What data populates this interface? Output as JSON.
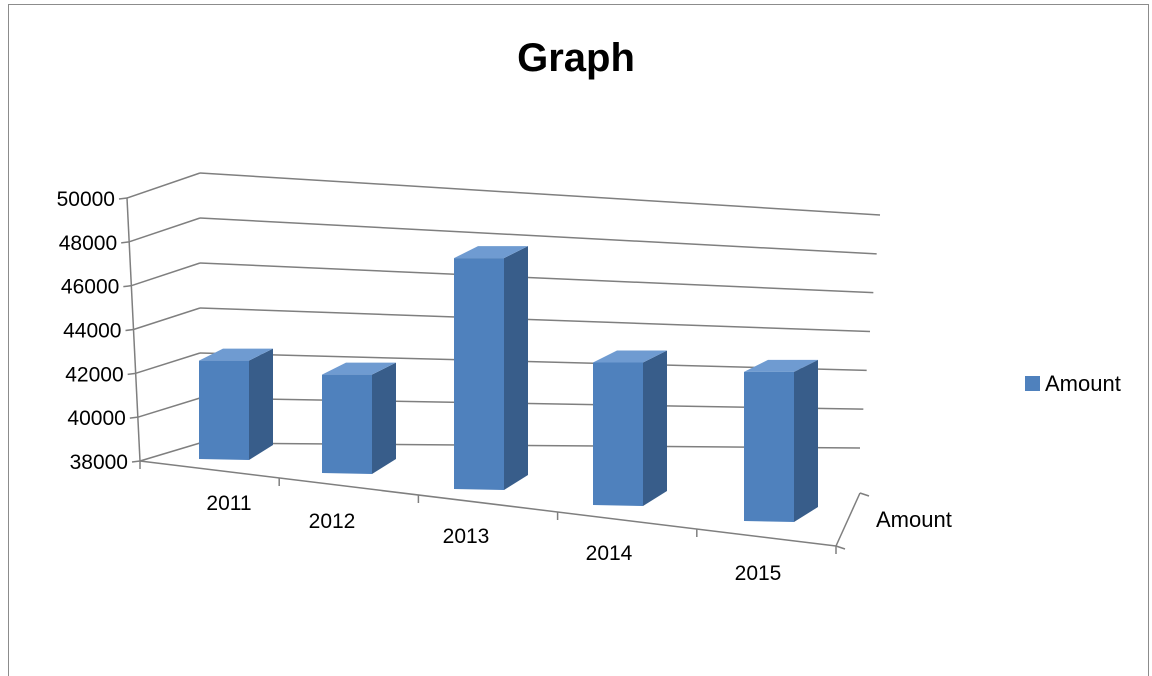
{
  "chart_data": {
    "type": "bar",
    "title": "Graph",
    "categories": [
      "2011",
      "2012",
      "2013",
      "2014",
      "2015"
    ],
    "series": [
      {
        "name": "Amount",
        "values": [
          42500,
          42500,
          48500,
          44500,
          44800
        ]
      }
    ],
    "yticks": [
      "38000",
      "40000",
      "42000",
      "44000",
      "46000",
      "48000",
      "50000"
    ],
    "ylim": [
      38000,
      50000
    ],
    "depth_label": "Amount",
    "grid": true,
    "legend": "right",
    "colors": {
      "bar_front": "#4f81bd",
      "bar_side": "#385d8a",
      "bar_top": "#6f9bd1",
      "grid": "#7f7f7f",
      "legend_swatch": "#4f81bd"
    }
  }
}
